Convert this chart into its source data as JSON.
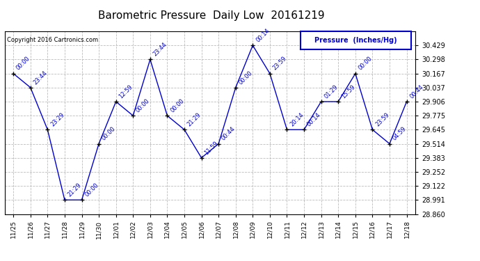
{
  "title": "Barometric Pressure  Daily Low  20161219",
  "ylabel": "Pressure  (Inches/Hg)",
  "copyright": "Copyright 2016 Cartronics.com",
  "x_labels": [
    "11/25",
    "11/26",
    "11/27",
    "11/28",
    "11/29",
    "11/30",
    "12/01",
    "12/02",
    "12/03",
    "12/04",
    "12/05",
    "12/06",
    "12/07",
    "12/08",
    "12/09",
    "12/10",
    "12/11",
    "12/12",
    "12/13",
    "12/14",
    "12/15",
    "12/16",
    "12/17",
    "12/18"
  ],
  "x_indices": [
    0,
    1,
    2,
    3,
    4,
    5,
    6,
    7,
    8,
    9,
    10,
    11,
    12,
    13,
    14,
    15,
    16,
    17,
    18,
    19,
    20,
    21,
    22,
    23
  ],
  "y_values": [
    30.167,
    30.037,
    29.645,
    28.991,
    28.991,
    29.514,
    29.906,
    29.775,
    30.298,
    29.775,
    29.645,
    29.383,
    29.514,
    30.037,
    30.429,
    30.167,
    29.645,
    29.645,
    29.906,
    29.906,
    30.167,
    29.645,
    29.514,
    29.906
  ],
  "point_labels": [
    "00:00",
    "23:44",
    "23:29",
    "21:29",
    "00:00",
    "00:00",
    "12:59",
    "00:00",
    "23:44",
    "00:00",
    "21:29",
    "11:59",
    "00:44",
    "00:00",
    "00:14",
    "23:59",
    "20:14",
    "00:14",
    "01:29",
    "15:59",
    "00:00",
    "23:59",
    "04:59",
    "00:44"
  ],
  "line_color": "#0000cc",
  "marker_color": "#000000",
  "background_color": "#ffffff",
  "grid_color": "#bbbbbb",
  "ylim_min": 28.86,
  "ylim_max": 30.56,
  "yticks": [
    28.86,
    28.991,
    29.122,
    29.252,
    29.383,
    29.514,
    29.645,
    29.775,
    29.906,
    30.037,
    30.167,
    30.298,
    30.429
  ],
  "legend_box_color": "#0000cc",
  "legend_text_color": "#0000cc",
  "title_color": "#000000",
  "label_fontsize": 8,
  "title_fontsize": 11
}
